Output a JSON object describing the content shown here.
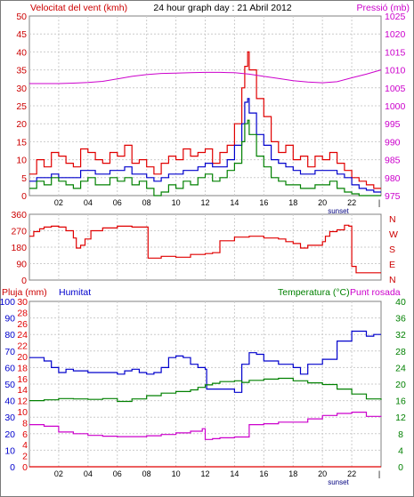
{
  "colors": {
    "red": "#e00000",
    "blue": "#0000cc",
    "green": "#008000",
    "magenta": "#cc00cc",
    "axis_left_top": "#cc0000",
    "axis_right_top": "#cc00cc",
    "grid": "#cccccc",
    "plot_bg": "#ffffff"
  },
  "header": {
    "wind_label": "Velocitat del vent (kmh)",
    "title": "24 hour graph day : 21 Abril 2012",
    "pressure_label": "Pressió (mb)"
  },
  "middle": {
    "dir_labels": [
      "N",
      "W",
      "S",
      "E",
      "N"
    ]
  },
  "bottom": {
    "rain_label": "Pluja (mm)",
    "hum_label": "Humitat",
    "temp_label": "Temperatura (°C)",
    "dew_label": "Punt rosada"
  },
  "x_tick_labels": [
    "02",
    "04",
    "06",
    "08",
    "10",
    "12",
    "14",
    "16",
    "18",
    "20",
    "22"
  ],
  "sunset_label": "sunset",
  "chart_data": [
    {
      "type": "line",
      "title": "24 hour graph day : 21 Abril 2012",
      "xlabel": "",
      "x_range": [
        0,
        24
      ],
      "y_left": {
        "label": "Velocitat del vent (kmh)",
        "range": [
          0,
          50
        ],
        "ticks": [
          0,
          5,
          10,
          15,
          20,
          25,
          30,
          35,
          40,
          45,
          50
        ]
      },
      "y_right": {
        "label": "Pressió (mb)",
        "range": [
          975,
          1025
        ],
        "ticks": [
          975,
          980,
          985,
          990,
          995,
          1000,
          1005,
          1010,
          1015,
          1020,
          1025
        ]
      },
      "grid": true,
      "series": [
        {
          "name": "Velocitat del vent (kmh)",
          "color": "red",
          "axis": "left",
          "x": [
            0,
            0.5,
            1,
            1.5,
            2,
            2.5,
            3,
            3.5,
            4,
            4.5,
            5,
            5.5,
            6,
            6.5,
            7,
            7.5,
            8,
            8.5,
            9,
            9.5,
            10,
            10.5,
            11,
            11.5,
            12,
            12.5,
            13,
            13.5,
            14,
            14.5,
            14.7,
            14.9,
            15,
            15.5,
            16,
            16.5,
            17,
            17.5,
            18,
            18.5,
            19,
            19.5,
            20,
            20.5,
            21,
            21.5,
            22,
            22.5,
            23,
            23.5
          ],
          "y": [
            6,
            10,
            8,
            12,
            11,
            9,
            8,
            13,
            12,
            10,
            9,
            12,
            11,
            14,
            9,
            10,
            8,
            6,
            9,
            11,
            10,
            13,
            11,
            12,
            13,
            9,
            12,
            14,
            20,
            30,
            36,
            40,
            35,
            27,
            22,
            15,
            12,
            14,
            10,
            11,
            8,
            11,
            10,
            12,
            9,
            7,
            5,
            4,
            3,
            2
          ]
        },
        {
          "name": "",
          "color": "blue",
          "axis": "left",
          "x": [
            0,
            0.5,
            1,
            1.5,
            2,
            2.5,
            3,
            3.5,
            4,
            4.5,
            5,
            5.5,
            6,
            6.5,
            7,
            7.5,
            8,
            8.5,
            9,
            9.5,
            10,
            10.5,
            11,
            11.5,
            12,
            12.5,
            13,
            13.5,
            14,
            14.5,
            14.7,
            14.9,
            15,
            15.5,
            16,
            16.5,
            17,
            17.5,
            18,
            18.5,
            19,
            19.5,
            20,
            20.5,
            21,
            21.5,
            22,
            22.5,
            23,
            23.5
          ],
          "y": [
            4,
            5,
            5,
            6,
            5,
            5,
            5,
            7,
            7,
            6,
            6,
            7,
            7,
            8,
            6,
            6,
            5,
            4,
            5,
            6,
            6,
            7,
            7,
            8,
            9,
            8,
            8,
            10,
            14,
            20,
            26,
            27,
            23,
            17,
            14,
            10,
            9,
            8,
            7,
            6,
            6,
            7,
            7,
            7,
            6,
            5,
            3,
            2,
            1.5,
            1
          ]
        },
        {
          "name": "",
          "color": "green",
          "axis": "left",
          "x": [
            0,
            0.5,
            1,
            1.5,
            2,
            2.5,
            3,
            3.5,
            4,
            4.5,
            5,
            5.5,
            6,
            6.5,
            7,
            7.5,
            8,
            8.5,
            9,
            9.5,
            10,
            10.5,
            11,
            11.5,
            12,
            12.5,
            13,
            13.5,
            14,
            14.5,
            14.7,
            14.9,
            15,
            15.5,
            16,
            16.5,
            17,
            17.5,
            18,
            18.5,
            19,
            19.5,
            20,
            20.5,
            21,
            21.5,
            22,
            22.5,
            23,
            23.5
          ],
          "y": [
            2,
            4,
            3,
            5,
            4,
            3,
            2,
            4,
            5,
            3,
            3,
            5,
            4,
            5,
            3,
            4,
            2,
            0,
            1,
            3,
            2,
            4,
            3,
            5,
            6,
            4,
            5,
            7,
            9,
            15,
            20,
            21,
            17,
            11,
            8,
            5,
            4,
            3,
            3,
            2,
            2,
            3,
            3,
            4,
            2,
            1,
            0.5,
            0,
            0,
            0
          ]
        },
        {
          "name": "Pressió (mb)",
          "color": "magenta",
          "axis": "right",
          "x": [
            0,
            1,
            2,
            3,
            4,
            5,
            6,
            7,
            8,
            9,
            10,
            11,
            12,
            13,
            14,
            15,
            16,
            17,
            18,
            19,
            20,
            21,
            22,
            23,
            24
          ],
          "y": [
            1006.2,
            1006.2,
            1006.2,
            1006.3,
            1006.5,
            1006.8,
            1007.5,
            1008.2,
            1008.7,
            1009.0,
            1009.1,
            1009.2,
            1009.3,
            1009.3,
            1009.2,
            1008.8,
            1008.2,
            1007.6,
            1007.0,
            1006.6,
            1006.4,
            1006.7,
            1007.8,
            1008.8,
            1010.0
          ]
        }
      ]
    },
    {
      "type": "line",
      "title": "",
      "x_range": [
        0,
        24
      ],
      "y_left": {
        "label": "",
        "range": [
          0,
          360
        ],
        "ticks": [
          0,
          90,
          180,
          270,
          360
        ]
      },
      "y_right": {
        "label": "",
        "categories": [
          "N",
          "W",
          "S",
          "E",
          "N"
        ]
      },
      "grid": true,
      "series": [
        {
          "name": "",
          "color": "red",
          "x": [
            0,
            0.3,
            0.7,
            1,
            1.5,
            2,
            2.5,
            3,
            3.2,
            3.5,
            3.8,
            4.2,
            5,
            6,
            7,
            8,
            8.1,
            9,
            10,
            11,
            12,
            12.5,
            13,
            14,
            15,
            16,
            17,
            17.5,
            18,
            18.5,
            19,
            20,
            20.2,
            20.5,
            21,
            21.5,
            21.8,
            22,
            22.3,
            23,
            24
          ],
          "y": [
            240,
            265,
            280,
            290,
            295,
            290,
            270,
            230,
            175,
            190,
            225,
            270,
            285,
            295,
            290,
            290,
            120,
            130,
            125,
            140,
            145,
            150,
            215,
            235,
            240,
            230,
            225,
            210,
            200,
            175,
            190,
            210,
            240,
            265,
            275,
            300,
            295,
            75,
            40,
            40,
            40
          ]
        }
      ]
    },
    {
      "type": "line",
      "title": "",
      "x_range": [
        0,
        24
      ],
      "y_left_1": {
        "label": "Pluja (mm)",
        "range": [
          0,
          30
        ],
        "ticks": [
          0,
          2,
          4,
          6,
          8,
          10,
          12,
          14,
          16,
          18,
          20,
          22,
          24,
          26,
          28,
          30
        ]
      },
      "y_left_2": {
        "label": "Humitat",
        "range": [
          0,
          100
        ],
        "ticks": [
          0,
          10,
          20,
          30,
          40,
          50,
          60,
          70,
          80,
          90,
          100
        ]
      },
      "y_right": {
        "label": "Temperatura (°C)",
        "range": [
          0,
          40
        ],
        "ticks": [
          0,
          4,
          8,
          12,
          16,
          20,
          24,
          28,
          32,
          36,
          40
        ]
      },
      "grid": true,
      "series": [
        {
          "name": "Humitat",
          "color": "blue",
          "axis": "left_hum",
          "x": [
            0,
            0.5,
            1,
            1.5,
            2,
            2.5,
            3,
            4,
            5,
            6,
            6.5,
            7,
            7.5,
            8,
            8.5,
            9,
            9.5,
            10,
            10.5,
            11,
            11.5,
            12,
            12.1,
            13,
            14,
            14.2,
            14.5,
            15,
            15.5,
            16,
            17,
            18,
            18.5,
            19,
            20,
            21,
            22,
            23,
            23.5
          ],
          "y": [
            66,
            66,
            64,
            60,
            57,
            59,
            58,
            57,
            57,
            56,
            58,
            59,
            57,
            56,
            57,
            60,
            66,
            67,
            66,
            62,
            60,
            59,
            47,
            47,
            45,
            45,
            62,
            69,
            68,
            64,
            62,
            60,
            56,
            62,
            65,
            76,
            82,
            79,
            80
          ]
        },
        {
          "name": "Temperatura (°C)",
          "color": "green",
          "axis": "right",
          "x": [
            0,
            1,
            2,
            3,
            4,
            5,
            6,
            7,
            8,
            9,
            10,
            11,
            11.5,
            12,
            12.5,
            13,
            14,
            14.5,
            15,
            16,
            17,
            18,
            19,
            20,
            21,
            22,
            23,
            24
          ],
          "y": [
            16,
            16.2,
            16.5,
            16.4,
            16.3,
            16.5,
            15.8,
            16.4,
            17.2,
            17.8,
            18.2,
            18.6,
            19.2,
            19.8,
            20.2,
            20.6,
            20.8,
            20.4,
            20.9,
            21.2,
            21.4,
            20.8,
            20.3,
            19.9,
            18.8,
            17.6,
            16.4,
            16.2
          ]
        },
        {
          "name": "Punt rosada",
          "color": "magenta",
          "axis": "right",
          "x": [
            0,
            1,
            2,
            3,
            4,
            5,
            6,
            7,
            8,
            9,
            10,
            11,
            11.8,
            12,
            12.5,
            13,
            14,
            14.5,
            15,
            16,
            17,
            18,
            19,
            20,
            21,
            22,
            23,
            24
          ],
          "y": [
            10.2,
            9.8,
            8.4,
            8.0,
            7.6,
            7.4,
            7.3,
            7.3,
            7.5,
            7.8,
            8.2,
            8.6,
            9.2,
            6.6,
            6.8,
            7.0,
            7.2,
            7.2,
            10.2,
            10.4,
            10.8,
            10.8,
            11.6,
            12.4,
            12.9,
            13.2,
            12.2,
            12.1
          ]
        },
        {
          "name": "Pluja (mm)",
          "color": "red",
          "axis": "left_rain",
          "x": [
            0,
            24
          ],
          "y": [
            0,
            0
          ]
        }
      ]
    }
  ]
}
